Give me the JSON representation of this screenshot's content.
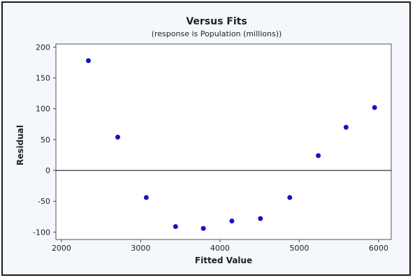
{
  "chart_data": {
    "type": "scatter",
    "title": "Versus Fits",
    "subtitle": "(response is Population (millions))",
    "xlabel": "Fitted Value",
    "ylabel": "Residual",
    "xlim": [
      1930,
      6160
    ],
    "ylim": [
      -112,
      205
    ],
    "xticks": [
      2000,
      3000,
      4000,
      5000,
      6000
    ],
    "yticks": [
      -100,
      -50,
      0,
      50,
      100,
      150,
      200
    ],
    "xtick_labels": [
      "2000",
      "3000",
      "4000",
      "5000",
      "6000"
    ],
    "ytick_labels": [
      "-100",
      "-50",
      "0",
      "50",
      "100",
      "150",
      "200"
    ],
    "reference_line_y": 0,
    "grid": false,
    "point_color": "#1414c8",
    "series": [
      {
        "points": [
          {
            "x": 2340,
            "y": 178
          },
          {
            "x": 2710,
            "y": 54
          },
          {
            "x": 3070,
            "y": -44
          },
          {
            "x": 3440,
            "y": -91
          },
          {
            "x": 3790,
            "y": -94
          },
          {
            "x": 4150,
            "y": -82
          },
          {
            "x": 4510,
            "y": -78
          },
          {
            "x": 4880,
            "y": -44
          },
          {
            "x": 5240,
            "y": 24
          },
          {
            "x": 5590,
            "y": 70
          },
          {
            "x": 5950,
            "y": 102
          }
        ]
      }
    ]
  }
}
